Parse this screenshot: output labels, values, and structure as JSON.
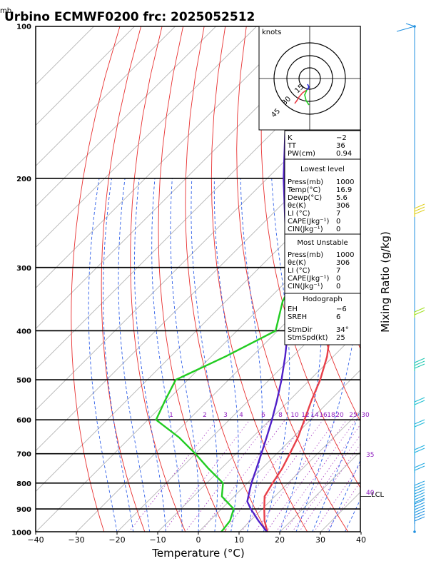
{
  "header": {
    "unit_label": "mb",
    "title": "Urbino ECMWF0200  frc: 2025052512"
  },
  "chart_data": {
    "type": "line",
    "title": "Urbino ECMWF0200  frc: 2025052512",
    "xlabel": "Temperature (°C)",
    "ylabel": "Mixing Ratio (g/kg)",
    "xlim": [
      -40,
      40
    ],
    "ylim": [
      1000,
      100
    ],
    "log_y": true,
    "x_ticks": [
      "−40",
      "−30",
      "−20",
      "−10",
      "0",
      "10",
      "20",
      "30",
      "40"
    ],
    "x_tick_values": [
      -40,
      -30,
      -20,
      -10,
      0,
      10,
      20,
      30,
      40
    ],
    "pressure_ticks": [
      "100",
      "200",
      "300",
      "400",
      "500",
      "600",
      "700",
      "800",
      "900",
      "1000"
    ],
    "pressure_tick_values": [
      100,
      200,
      300,
      400,
      500,
      600,
      700,
      800,
      900,
      1000
    ],
    "mixing_ratio_labels": [
      "1",
      "2",
      "3",
      "4",
      "6",
      "8",
      "10",
      "12",
      "14",
      "16",
      "18",
      "20",
      "25",
      "30"
    ],
    "mixing_ratio_values": [
      1,
      2,
      3,
      4,
      6,
      8,
      10,
      12,
      14,
      16,
      18,
      20,
      25,
      30
    ],
    "side_labels": [
      "35",
      "40"
    ],
    "lcl_label": "LCL",
    "lcl_pressure": 850,
    "series": [
      {
        "color": "#e8404a",
        "points": [
          [
            1000,
            17.0
          ],
          [
            950,
            13.5
          ],
          [
            900,
            10.5
          ],
          [
            850,
            7.5
          ],
          [
            800,
            6.2
          ],
          [
            750,
            5.0
          ],
          [
            700,
            3.2
          ],
          [
            650,
            1.2
          ],
          [
            600,
            -1.5
          ],
          [
            550,
            -4.5
          ],
          [
            500,
            -7.5
          ],
          [
            450,
            -11.5
          ],
          [
            400,
            -17.0
          ],
          [
            350,
            -22.5
          ],
          [
            300,
            -29.0
          ],
          [
            275,
            -33.5
          ],
          [
            250,
            -37.0
          ],
          [
            225,
            -32.0
          ],
          [
            200,
            -28.0
          ],
          [
            175,
            -22.5
          ],
          [
            150,
            -17.5
          ],
          [
            125,
            -10.0
          ],
          [
            100,
            -2.0
          ]
        ]
      },
      {
        "color": "#22cc22",
        "points": [
          [
            1000,
            5.6
          ],
          [
            950,
            5.0
          ],
          [
            900,
            3.0
          ],
          [
            850,
            -3.0
          ],
          [
            800,
            -6.0
          ],
          [
            750,
            -13.0
          ],
          [
            700,
            -20.0
          ],
          [
            650,
            -28.0
          ],
          [
            600,
            -38.0
          ],
          [
            550,
            -40.5
          ],
          [
            500,
            -43.0
          ],
          [
            450,
            -36.5
          ],
          [
            400,
            -30.5
          ],
          [
            350,
            -36.0
          ],
          [
            300,
            -40.0
          ],
          [
            250,
            -46.0
          ],
          [
            200,
            -47.0
          ],
          [
            150,
            -48.5
          ],
          [
            100,
            -50.0
          ]
        ]
      },
      {
        "color": "#5020c8",
        "points": [
          [
            1000,
            16.9
          ],
          [
            950,
            12.0
          ],
          [
            900,
            7.2
          ],
          [
            870,
            4.5
          ],
          [
            850,
            3.5
          ],
          [
            800,
            1.0
          ],
          [
            750,
            -1.3
          ],
          [
            700,
            -3.8
          ],
          [
            650,
            -6.5
          ],
          [
            600,
            -9.5
          ],
          [
            550,
            -13.0
          ],
          [
            500,
            -17.0
          ],
          [
            450,
            -21.8
          ],
          [
            400,
            -27.5
          ],
          [
            350,
            -34.5
          ],
          [
            300,
            -43.0
          ],
          [
            250,
            -53.5
          ],
          [
            200,
            -66.0
          ],
          [
            150,
            -81.0
          ],
          [
            130,
            -88.0
          ]
        ]
      }
    ]
  },
  "hodograph": {
    "unit": "knots",
    "ring_labels": [
      "15",
      "30",
      "45"
    ]
  },
  "indices": {
    "general": [
      {
        "label": "K",
        "value": "−2"
      },
      {
        "label": "TT",
        "value": "36"
      },
      {
        "label": "PW(cm)",
        "value": "0.94"
      }
    ],
    "lowest": {
      "title": "Lowest level",
      "rows": [
        {
          "label": "Press(mb)",
          "value": "1000"
        },
        {
          "label": "Temp(°C)",
          "value": "16.9"
        },
        {
          "label": "Dewp(°C)",
          "value": "5.6"
        },
        {
          "label": "θε(K)",
          "value": "306"
        },
        {
          "label": "LI (°C)",
          "value": "7"
        },
        {
          "label": "CAPE(Jkg⁻¹)",
          "value": "0"
        },
        {
          "label": "CIN(Jkg⁻¹)",
          "value": "0"
        }
      ]
    },
    "unstable": {
      "title": "Most Unstable",
      "rows": [
        {
          "label": "Press(mb)",
          "value": "1000"
        },
        {
          "label": "θε(K)",
          "value": "306"
        },
        {
          "label": "LI (°C)",
          "value": "7"
        },
        {
          "label": "CAPE(Jkg⁻¹)",
          "value": "0"
        },
        {
          "label": "CIN(Jkg⁻¹)",
          "value": "0"
        }
      ]
    },
    "hodo": {
      "title": "Hodograph",
      "rows": [
        {
          "label": "EH",
          "value": "−6"
        },
        {
          "label": "SREH",
          "value": "6"
        }
      ],
      "rows2": [
        {
          "label": "StmDir",
          "value": "34°"
        },
        {
          "label": "StmSpd(kt)",
          "value": "25"
        }
      ]
    }
  }
}
